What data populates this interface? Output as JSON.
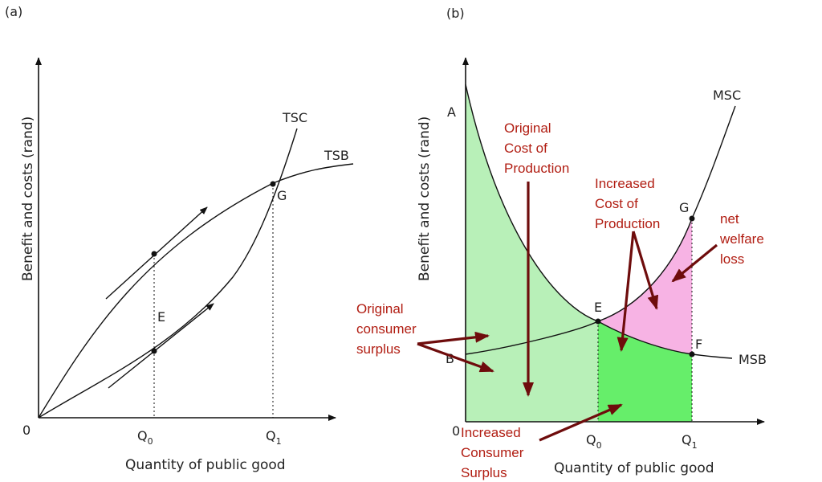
{
  "panel_a": {
    "tag": "(a)",
    "ylabel": "Benefit and costs (rand)",
    "xlabel": "Quantity of public good",
    "origin": "0",
    "q0_main": "Q",
    "q0_sub": "0",
    "q1_main": "Q",
    "q1_sub": "1",
    "curves": {
      "tsc": "TSC",
      "tsb": "TSB"
    },
    "points": {
      "g": "G",
      "e": "E"
    }
  },
  "panel_b": {
    "tag": "(b)",
    "ylabel": "Benefit and costs (rand)",
    "xlabel": "Quantity of public good",
    "origin": "0",
    "q0_main": "Q",
    "q0_sub": "0",
    "q1_main": "Q",
    "q1_sub": "1",
    "curves": {
      "msc": "MSC",
      "msb": "MSB"
    },
    "points": {
      "a": "A",
      "b": "B",
      "e": "E",
      "f": "F",
      "g": "G"
    },
    "annotations": {
      "original_cost": [
        "Original",
        "Cost of",
        "Production"
      ],
      "increased_cost": [
        "Increased",
        "Cost of",
        "Production"
      ],
      "net_welfare": [
        "net",
        "welfare",
        "loss"
      ],
      "original_cs": [
        "Original",
        "consumer",
        "surplus"
      ],
      "increased_cs": [
        "Increased",
        "Consumer",
        "Surplus"
      ]
    }
  },
  "colors": {
    "light_green": "#b8f0b8",
    "bright_green": "#66ee6a",
    "pink": "#f7b3e4",
    "annotation_red": "#b11d12",
    "arrow_dark_red": "#6e0c0c"
  }
}
